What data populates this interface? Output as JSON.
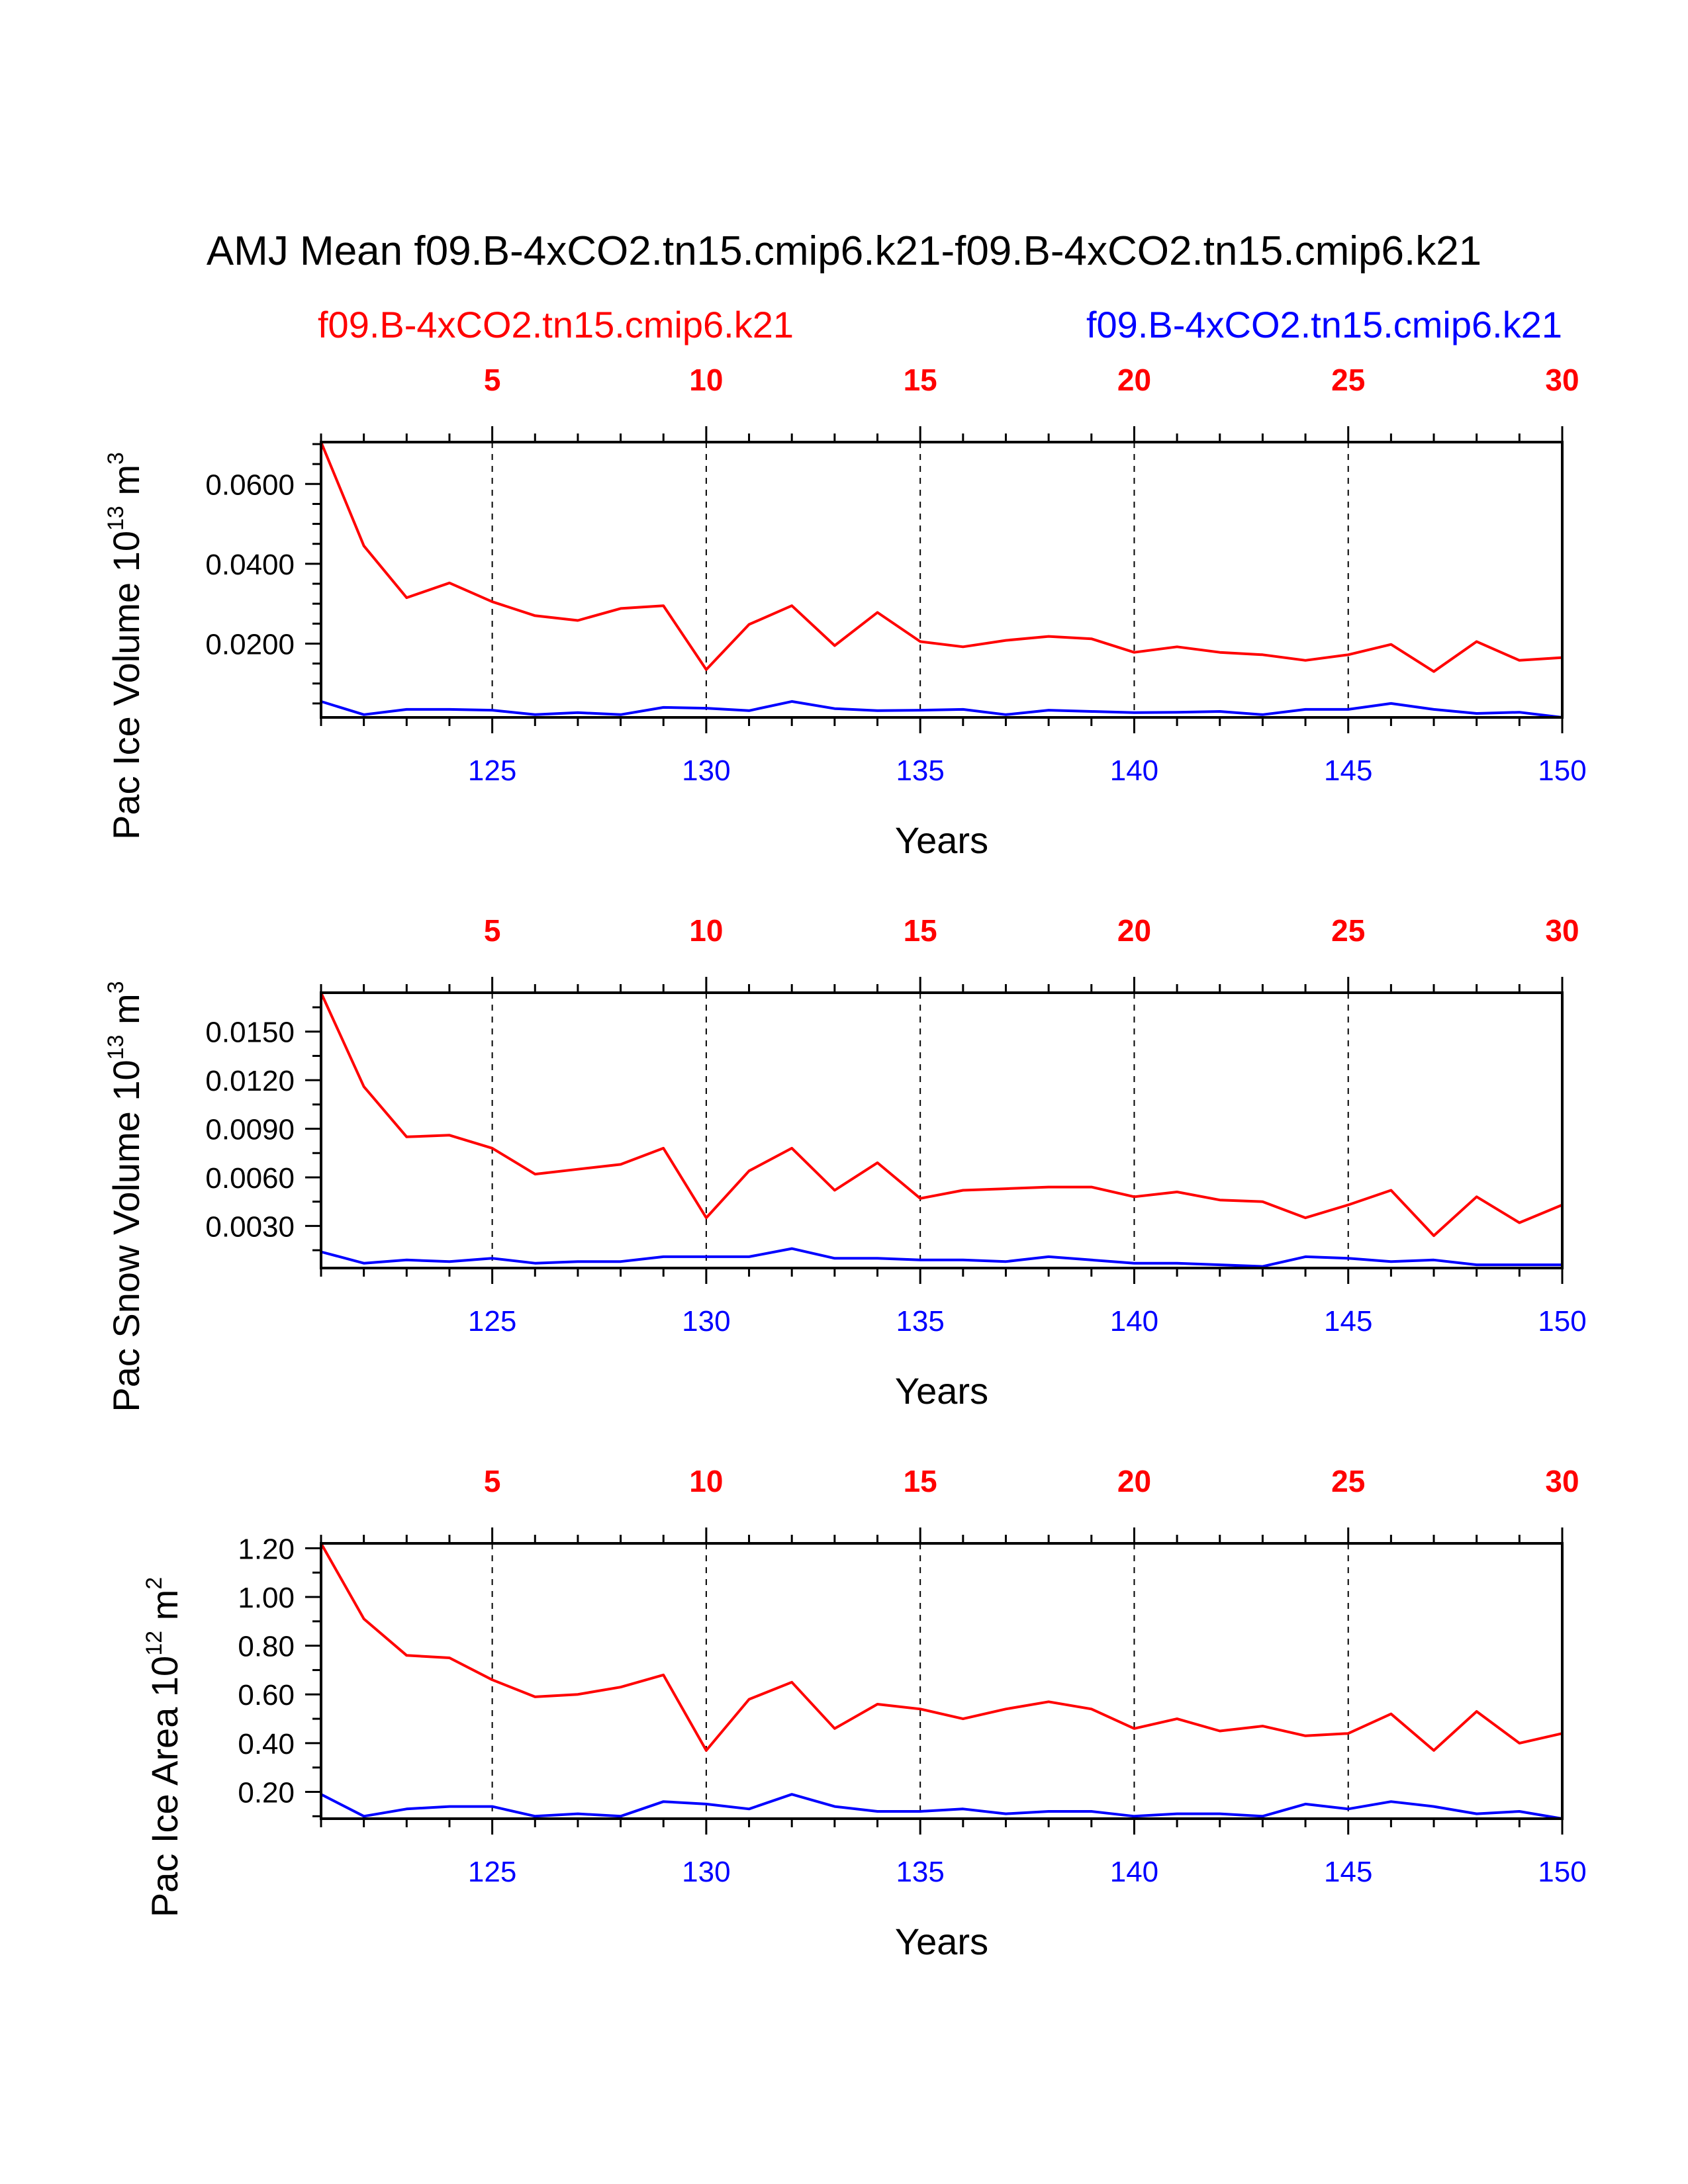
{
  "title": "AMJ Mean f09.B-4xCO2.tn15.cmip6.k21-f09.B-4xCO2.tn15.cmip6.k21",
  "case_left": "f09.B-4xCO2.tn15.cmip6.k21",
  "case_right": "f09.B-4xCO2.tn15.cmip6.k21",
  "colors": {
    "red": "#ff0000",
    "blue": "#0000ff",
    "axis": "#000000"
  },
  "chart_data": [
    {
      "type": "line",
      "id": "ice-volume",
      "ylabel_main": "Pac Ice Volume 10",
      "ylabel_exp": "13",
      "ylabel_unit": " m",
      "ylabel_unit_exp": "3",
      "xlabel": "Years",
      "xlim": [
        121,
        150
      ],
      "ylim": [
        0.0015,
        0.0705
      ],
      "yticks": [
        0.02,
        0.04,
        0.06
      ],
      "ytick_labels": [
        "0.0200",
        "0.0400",
        "0.0600"
      ],
      "yminor": [
        0.005,
        0.01,
        0.015,
        0.025,
        0.03,
        0.035,
        0.045,
        0.05,
        0.055,
        0.065,
        0.07
      ],
      "bottom_ticks": [
        125,
        130,
        135,
        140,
        145,
        150
      ],
      "bottom_tick_labels": [
        "125",
        "130",
        "135",
        "140",
        "145",
        "150"
      ],
      "top_ticks": [
        5,
        10,
        15,
        20,
        25,
        30
      ],
      "top_tick_labels": [
        "5",
        "10",
        "15",
        "20",
        "25",
        "30"
      ],
      "series": [
        {
          "name": "f09.B-4xCO2.tn15.cmip6.k21",
          "color": "#ff0000",
          "x_axis": "top",
          "x": [
            1,
            2,
            3,
            4,
            5,
            6,
            7,
            8,
            9,
            10,
            11,
            12,
            13,
            14,
            15,
            16,
            17,
            18,
            19,
            20,
            21,
            22,
            23,
            24,
            25,
            26,
            27,
            28,
            29,
            30
          ],
          "values": [
            0.0705,
            0.0445,
            0.0315,
            0.0352,
            0.0305,
            0.027,
            0.0258,
            0.0288,
            0.0295,
            0.0135,
            0.0248,
            0.0295,
            0.0195,
            0.0278,
            0.0205,
            0.0192,
            0.0208,
            0.0218,
            0.0212,
            0.0178,
            0.0192,
            0.0178,
            0.0172,
            0.0158,
            0.0172,
            0.0198,
            0.013,
            0.0205,
            0.0158,
            0.0165
          ]
        },
        {
          "name": "f09.B-4xCO2.tn15.cmip6.k21",
          "color": "#0000ff",
          "x_axis": "bottom",
          "x": [
            121,
            122,
            123,
            124,
            125,
            126,
            127,
            128,
            129,
            130,
            131,
            132,
            133,
            134,
            135,
            136,
            137,
            138,
            139,
            140,
            141,
            142,
            143,
            144,
            145,
            146,
            147,
            148,
            149,
            150
          ],
          "values": [
            0.0055,
            0.0022,
            0.0035,
            0.0035,
            0.0033,
            0.0022,
            0.0027,
            0.0022,
            0.004,
            0.0038,
            0.0032,
            0.0055,
            0.0037,
            0.0032,
            0.0033,
            0.0035,
            0.0022,
            0.0033,
            0.003,
            0.0027,
            0.0028,
            0.003,
            0.0022,
            0.0035,
            0.0035,
            0.005,
            0.0035,
            0.0025,
            0.0028,
            0.0015
          ]
        }
      ]
    },
    {
      "type": "line",
      "id": "snow-volume",
      "ylabel_main": "Pac Snow Volume 10",
      "ylabel_exp": "13",
      "ylabel_unit": " m",
      "ylabel_unit_exp": "3",
      "xlabel": "Years",
      "xlim": [
        121,
        150
      ],
      "ylim": [
        0.0004,
        0.0174
      ],
      "yticks": [
        0.003,
        0.006,
        0.009,
        0.012,
        0.015
      ],
      "ytick_labels": [
        "0.0030",
        "0.0060",
        "0.0090",
        "0.0120",
        "0.0150"
      ],
      "yminor": [
        0.0015,
        0.0045,
        0.0075,
        0.0105,
        0.0135,
        0.0165
      ],
      "bottom_ticks": [
        125,
        130,
        135,
        140,
        145,
        150
      ],
      "bottom_tick_labels": [
        "125",
        "130",
        "135",
        "140",
        "145",
        "150"
      ],
      "top_ticks": [
        5,
        10,
        15,
        20,
        25,
        30
      ],
      "top_tick_labels": [
        "5",
        "10",
        "15",
        "20",
        "25",
        "30"
      ],
      "series": [
        {
          "name": "f09.B-4xCO2.tn15.cmip6.k21",
          "color": "#ff0000",
          "x_axis": "top",
          "x": [
            1,
            2,
            3,
            4,
            5,
            6,
            7,
            8,
            9,
            10,
            11,
            12,
            13,
            14,
            15,
            16,
            17,
            18,
            19,
            20,
            21,
            22,
            23,
            24,
            25,
            26,
            27,
            28,
            29,
            30
          ],
          "values": [
            0.0174,
            0.0116,
            0.0085,
            0.0086,
            0.0078,
            0.0062,
            0.0065,
            0.0068,
            0.0078,
            0.0035,
            0.0064,
            0.0078,
            0.0052,
            0.0069,
            0.0047,
            0.0052,
            0.0053,
            0.0054,
            0.0054,
            0.0048,
            0.0051,
            0.0046,
            0.0045,
            0.0035,
            0.0043,
            0.0052,
            0.0024,
            0.0048,
            0.0032,
            0.0043
          ]
        },
        {
          "name": "f09.B-4xCO2.tn15.cmip6.k21",
          "color": "#0000ff",
          "x_axis": "bottom",
          "x": [
            121,
            122,
            123,
            124,
            125,
            126,
            127,
            128,
            129,
            130,
            131,
            132,
            133,
            134,
            135,
            136,
            137,
            138,
            139,
            140,
            141,
            142,
            143,
            144,
            145,
            146,
            147,
            148,
            149,
            150
          ],
          "values": [
            0.0014,
            0.0007,
            0.0009,
            0.0008,
            0.001,
            0.0007,
            0.0008,
            0.0008,
            0.0011,
            0.0011,
            0.0011,
            0.0016,
            0.001,
            0.001,
            0.0009,
            0.0009,
            0.0008,
            0.0011,
            0.0009,
            0.0007,
            0.0007,
            0.0006,
            0.0005,
            0.0011,
            0.001,
            0.0008,
            0.0009,
            0.0006,
            0.0006,
            0.0006
          ]
        }
      ]
    },
    {
      "type": "line",
      "id": "ice-area",
      "ylabel_main": "Pac Ice Area 10",
      "ylabel_exp": "12",
      "ylabel_unit": " m",
      "ylabel_unit_exp": "2",
      "xlabel": "Years",
      "xlim": [
        121,
        150
      ],
      "ylim": [
        0.09,
        1.22
      ],
      "yticks": [
        0.2,
        0.4,
        0.6,
        0.8,
        1.0,
        1.2
      ],
      "ytick_labels": [
        "0.20",
        "0.40",
        "0.60",
        "0.80",
        "1.00",
        "1.20"
      ],
      "yminor": [
        0.1,
        0.3,
        0.5,
        0.7,
        0.9,
        1.1
      ],
      "bottom_ticks": [
        125,
        130,
        135,
        140,
        145,
        150
      ],
      "bottom_tick_labels": [
        "125",
        "130",
        "135",
        "140",
        "145",
        "150"
      ],
      "top_ticks": [
        5,
        10,
        15,
        20,
        25,
        30
      ],
      "top_tick_labels": [
        "5",
        "10",
        "15",
        "20",
        "25",
        "30"
      ],
      "series": [
        {
          "name": "f09.B-4xCO2.tn15.cmip6.k21",
          "color": "#ff0000",
          "x_axis": "top",
          "x": [
            1,
            2,
            3,
            4,
            5,
            6,
            7,
            8,
            9,
            10,
            11,
            12,
            13,
            14,
            15,
            16,
            17,
            18,
            19,
            20,
            21,
            22,
            23,
            24,
            25,
            26,
            27,
            28,
            29,
            30
          ],
          "values": [
            1.22,
            0.91,
            0.76,
            0.75,
            0.66,
            0.59,
            0.6,
            0.63,
            0.68,
            0.37,
            0.58,
            0.65,
            0.46,
            0.56,
            0.54,
            0.5,
            0.54,
            0.57,
            0.54,
            0.46,
            0.5,
            0.45,
            0.47,
            0.43,
            0.44,
            0.52,
            0.37,
            0.53,
            0.4,
            0.44
          ]
        },
        {
          "name": "f09.B-4xCO2.tn15.cmip6.k21",
          "color": "#0000ff",
          "x_axis": "bottom",
          "x": [
            121,
            122,
            123,
            124,
            125,
            126,
            127,
            128,
            129,
            130,
            131,
            132,
            133,
            134,
            135,
            136,
            137,
            138,
            139,
            140,
            141,
            142,
            143,
            144,
            145,
            146,
            147,
            148,
            149,
            150
          ],
          "values": [
            0.19,
            0.1,
            0.13,
            0.14,
            0.14,
            0.1,
            0.11,
            0.1,
            0.16,
            0.15,
            0.13,
            0.19,
            0.14,
            0.12,
            0.12,
            0.13,
            0.11,
            0.12,
            0.12,
            0.1,
            0.11,
            0.11,
            0.1,
            0.15,
            0.13,
            0.16,
            0.14,
            0.11,
            0.12,
            0.09
          ]
        }
      ]
    }
  ]
}
